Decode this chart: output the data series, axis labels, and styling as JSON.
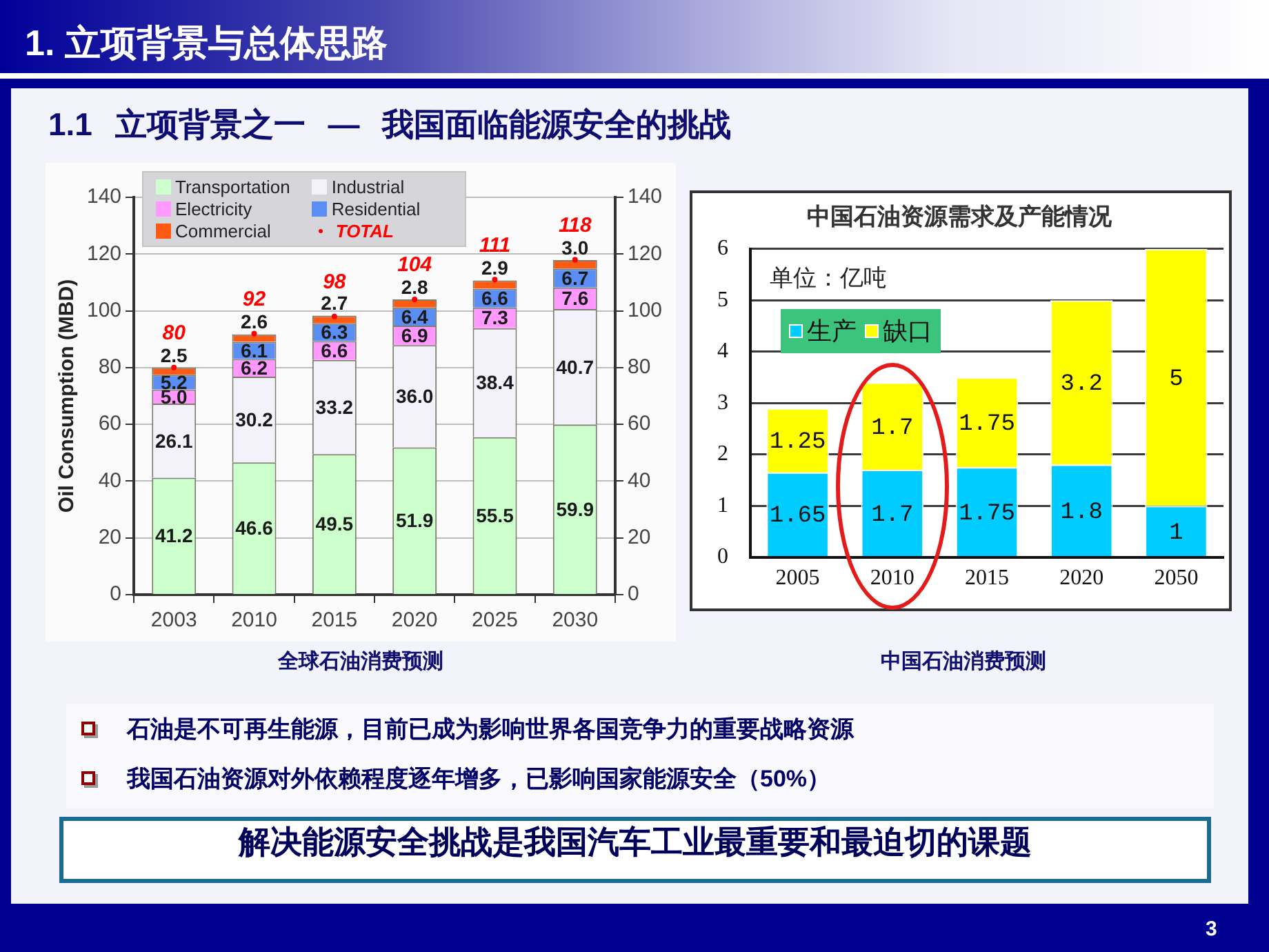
{
  "chart_data": [
    {
      "type": "other",
      "title": "1. 立项背景与总体思路",
      "subtitle": "1.1 立项背景之一 — 我国面临能源安全的挑战"
    },
    {
      "type": "bar",
      "ylabel": "Oil Consumption (MBD)",
      "categories": [
        "2003",
        "2010",
        "2015",
        "2020",
        "2025",
        "2030"
      ],
      "stacked": true,
      "series": [
        {
          "name": "Transportation",
          "color": "#ccffcc",
          "values": [
            41.2,
            46.6,
            49.5,
            51.9,
            55.5,
            59.9
          ],
          "value_labels": [
            "41.2",
            "46.6",
            "49.5",
            "51.9",
            "55.5",
            "59.9"
          ]
        },
        {
          "name": "Industrial",
          "color": "#f3f1fa",
          "values": [
            26.1,
            30.2,
            33.2,
            36.0,
            38.4,
            40.7
          ],
          "value_labels": [
            "26.1",
            "30.2",
            "33.2",
            "36.0",
            "38.4",
            "40.7"
          ]
        },
        {
          "name": "Electricity",
          "color": "#ff99ff",
          "values": [
            5.0,
            6.2,
            6.6,
            6.9,
            7.3,
            7.6
          ],
          "value_labels": [
            "5.0",
            "6.2",
            "6.6",
            "6.9",
            "7.3",
            "7.6"
          ]
        },
        {
          "name": "Residential",
          "color": "#5b8ef5",
          "values": [
            5.2,
            6.1,
            6.3,
            6.4,
            6.6,
            6.7
          ],
          "value_labels": [
            "5.2",
            "6.1",
            "6.3",
            "6.4",
            "6.6",
            "6.7"
          ]
        },
        {
          "name": "Commercial",
          "color": "#ff5a14",
          "values": [
            2.5,
            2.6,
            2.7,
            2.8,
            2.9,
            3.0
          ],
          "value_labels": [
            "2.5",
            "2.6",
            "2.7",
            "2.8",
            "2.9",
            "3.0"
          ]
        },
        {
          "name": "TOTAL",
          "type": "scatter",
          "color": "#ff0000",
          "values": [
            80,
            92,
            98,
            104,
            111,
            118
          ],
          "value_labels": [
            "80",
            "92",
            "98",
            "104",
            "111",
            "118"
          ]
        }
      ],
      "ylim": [
        0,
        140
      ],
      "yticks": [
        0,
        20,
        40,
        60,
        80,
        100,
        120,
        140
      ],
      "y2lim": [
        0,
        140
      ],
      "y2ticks": [
        0,
        20,
        40,
        60,
        80,
        100,
        120,
        140
      ],
      "grid": "y",
      "legend": "top left",
      "annotations": [
        "全球石油消费预测"
      ]
    },
    {
      "type": "bar",
      "title": "中国石油资源需求及产能情况",
      "categories": [
        "2005",
        "2010",
        "2015",
        "2020",
        "2050"
      ],
      "stacked": true,
      "series": [
        {
          "name": "生产",
          "color": "#00ccff",
          "values": [
            1.65,
            1.7,
            1.75,
            1.8,
            1
          ]
        },
        {
          "name": "缺口",
          "color": "#ffff00",
          "values": [
            1.25,
            1.7,
            1.75,
            3.2,
            5
          ]
        }
      ],
      "ylim": [
        0,
        6
      ],
      "yticks": [
        0,
        1,
        2,
        3,
        4,
        5,
        6
      ],
      "grid": "y",
      "legend": "top left",
      "data_labels": true,
      "annotations": [
        "单位：亿吨",
        "中国石油消费预测"
      ]
    },
    {
      "type": "other",
      "annotations": [
        "石油是不可再生能源，目前已成为影响世界各国竞争力的重要战略资源",
        "我国石油资源对外依赖程度逐年增多，已影响国家能源安全（50%）",
        "解决能源安全挑战是我国汽车工业最重要和最迫切的课题",
        "3"
      ]
    }
  ]
}
